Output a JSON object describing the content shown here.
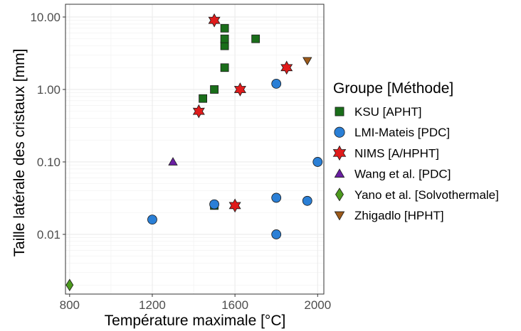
{
  "chart_data": {
    "type": "scatter",
    "xlabel": "Température maximale [°C]",
    "ylabel": "Taille latérale des cristaux [mm]",
    "xlim": [
      780,
      2030
    ],
    "ylim": [
      0.0015,
      15
    ],
    "y_scale": "log",
    "x_ticks": [
      800,
      1200,
      1600,
      2000
    ],
    "x_tick_labels": [
      "800",
      "1200",
      "1600",
      "2000"
    ],
    "y_ticks": [
      0.01,
      0.1,
      1,
      10
    ],
    "y_tick_labels": [
      "0.01",
      "0.10",
      "1.00",
      "10.00"
    ],
    "grid": true,
    "legend": {
      "title": "Groupe [Méthode]",
      "position": "right"
    },
    "series": [
      {
        "name": "KSU [APHT]",
        "marker": "square",
        "color": "#1a6e1a",
        "points": [
          {
            "x": 1445,
            "y": 0.75
          },
          {
            "x": 1500,
            "y": 1.0
          },
          {
            "x": 1550,
            "y": 2.0
          },
          {
            "x": 1550,
            "y": 4.0
          },
          {
            "x": 1550,
            "y": 5.0
          },
          {
            "x": 1550,
            "y": 7.0
          },
          {
            "x": 1700,
            "y": 5.0
          },
          {
            "x": 1500,
            "y": 0.025
          }
        ]
      },
      {
        "name": "LMI-Mateis [PDC]",
        "marker": "circle",
        "color": "#2a7fd6",
        "points": [
          {
            "x": 1200,
            "y": 0.016
          },
          {
            "x": 1500,
            "y": 0.026
          },
          {
            "x": 1800,
            "y": 0.032
          },
          {
            "x": 1800,
            "y": 0.01
          },
          {
            "x": 1800,
            "y": 1.2
          },
          {
            "x": 1950,
            "y": 0.029
          },
          {
            "x": 2000,
            "y": 0.1
          }
        ]
      },
      {
        "name": "NIMS [A/HPHT]",
        "marker": "star",
        "color": "#e01b1b",
        "points": [
          {
            "x": 1500,
            "y": 9.0
          },
          {
            "x": 1425,
            "y": 0.5
          },
          {
            "x": 1625,
            "y": 1.0
          },
          {
            "x": 1850,
            "y": 2.0
          },
          {
            "x": 1600,
            "y": 0.025
          }
        ]
      },
      {
        "name": "Wang et al. [PDC]",
        "marker": "triangle-up",
        "color": "#6a1fa3",
        "points": [
          {
            "x": 1300,
            "y": 0.1
          }
        ]
      },
      {
        "name": "Yano et al. [Solvothermale]",
        "marker": "diamond",
        "color": "#4d9a1e",
        "points": [
          {
            "x": 800,
            "y": 0.002
          }
        ]
      },
      {
        "name": "Zhigadlo [HPHT]",
        "marker": "triangle-down",
        "color": "#9c5a1a",
        "points": [
          {
            "x": 1950,
            "y": 2.5
          }
        ]
      }
    ]
  }
}
